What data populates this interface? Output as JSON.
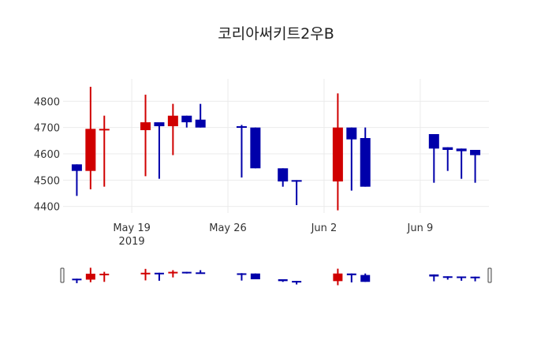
{
  "title": "코리아써키트2우B",
  "colors": {
    "increasing": "#d00000",
    "decreasing": "#0000aa",
    "grid": "#ebebeb",
    "text": "#333333"
  },
  "chart_data": {
    "type": "candlestick",
    "title": "코리아써키트2우B",
    "xlabel": "",
    "ylabel": "",
    "ylim": [
      4375,
      4885
    ],
    "yticks": [
      4400,
      4500,
      4600,
      4700,
      4800
    ],
    "xticks": [
      {
        "label": "May 19",
        "sublabel": "2019",
        "date": "2019-05-19"
      },
      {
        "label": "May 26",
        "sublabel": "",
        "date": "2019-05-26"
      },
      {
        "label": "Jun 2",
        "sublabel": "",
        "date": "2019-06-02"
      },
      {
        "label": "Jun 9",
        "sublabel": "",
        "date": "2019-06-09"
      }
    ],
    "xrange": [
      "2019-05-14",
      "2019-06-14"
    ],
    "grid": true,
    "legend": false,
    "rangeslider": true,
    "candles": [
      {
        "date": "2019-05-15",
        "open": 4560,
        "high": 4560,
        "low": 4440,
        "close": 4535
      },
      {
        "date": "2019-05-16",
        "open": 4535,
        "high": 4855,
        "low": 4465,
        "close": 4695
      },
      {
        "date": "2019-05-17",
        "open": 4690,
        "high": 4745,
        "low": 4475,
        "close": 4695
      },
      {
        "date": "2019-05-20",
        "open": 4690,
        "high": 4825,
        "low": 4515,
        "close": 4720
      },
      {
        "date": "2019-05-21",
        "open": 4720,
        "high": 4720,
        "low": 4505,
        "close": 4705
      },
      {
        "date": "2019-05-22",
        "open": 4705,
        "high": 4790,
        "low": 4595,
        "close": 4745
      },
      {
        "date": "2019-05-23",
        "open": 4745,
        "high": 4745,
        "low": 4700,
        "close": 4720
      },
      {
        "date": "2019-05-24",
        "open": 4730,
        "high": 4790,
        "low": 4700,
        "close": 4700
      },
      {
        "date": "2019-05-27",
        "open": 4705,
        "high": 4710,
        "low": 4510,
        "close": 4700
      },
      {
        "date": "2019-05-28",
        "open": 4700,
        "high": 4700,
        "low": 4545,
        "close": 4545
      },
      {
        "date": "2019-05-30",
        "open": 4545,
        "high": 4545,
        "low": 4475,
        "close": 4495
      },
      {
        "date": "2019-05-31",
        "open": 4500,
        "high": 4500,
        "low": 4405,
        "close": 4495
      },
      {
        "date": "2019-06-03",
        "open": 4495,
        "high": 4830,
        "low": 4385,
        "close": 4700
      },
      {
        "date": "2019-06-04",
        "open": 4700,
        "high": 4700,
        "low": 4460,
        "close": 4655
      },
      {
        "date": "2019-06-05",
        "open": 4660,
        "high": 4700,
        "low": 4475,
        "close": 4475
      },
      {
        "date": "2019-06-10",
        "open": 4675,
        "high": 4675,
        "low": 4490,
        "close": 4620
      },
      {
        "date": "2019-06-11",
        "open": 4625,
        "high": 4625,
        "low": 4535,
        "close": 4615
      },
      {
        "date": "2019-06-12",
        "open": 4620,
        "high": 4620,
        "low": 4505,
        "close": 4610
      },
      {
        "date": "2019-06-13",
        "open": 4615,
        "high": 4615,
        "low": 4490,
        "close": 4595
      }
    ]
  }
}
